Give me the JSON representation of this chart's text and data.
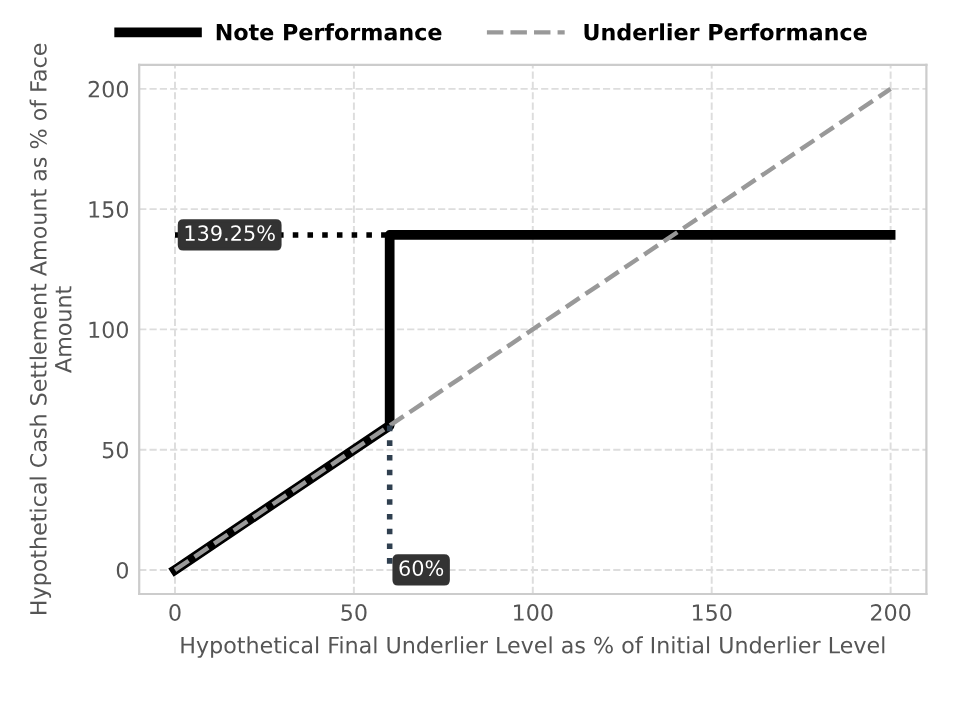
{
  "chart_data": {
    "type": "line",
    "xlabel": "Hypothetical Final Underlier Level as % of Initial Underlier Level",
    "ylabel": "Hypothetical Cash Settlement Amount as % of Face Amount",
    "xlim": [
      -10,
      210
    ],
    "xticks": [
      0,
      50,
      100,
      150,
      200
    ],
    "ylim": [
      -10,
      210
    ],
    "yticks": [
      0,
      50,
      100,
      150,
      200
    ],
    "grid": true,
    "legend": "top",
    "marker": "none",
    "series": [
      {
        "name": "Note Performance",
        "color": "#000000",
        "line_style": "solid",
        "x": [
          0,
          60,
          60,
          200
        ],
        "values": [
          0,
          60,
          139.25,
          139.25
        ]
      },
      {
        "name": "Underlier Performance",
        "color": "#999999",
        "line_style": "dashed",
        "x": [
          0,
          200
        ],
        "values": [
          0,
          200
        ]
      },
      {
        "color": "#000000",
        "line_style": "dotted",
        "x": [
          0,
          60
        ],
        "values": [
          139.25,
          139.25
        ]
      },
      {
        "color": "#2f3f4f",
        "line_style": "dotted",
        "x": [
          60,
          60
        ],
        "values": [
          60,
          0
        ]
      }
    ],
    "annotations": [
      {
        "text": "139.25%",
        "x": 0,
        "y": 139.25
      },
      {
        "text": "60%",
        "x": 60,
        "y": 0
      }
    ]
  }
}
